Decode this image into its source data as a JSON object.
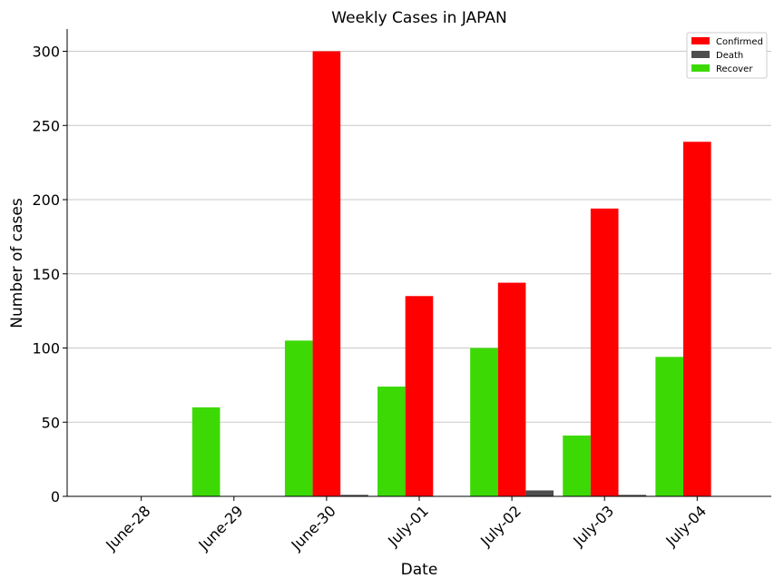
{
  "chart_data": {
    "type": "bar",
    "title": "Weekly Cases in JAPAN",
    "xlabel": "Date",
    "ylabel": "Number of cases",
    "categories": [
      "June-28",
      "June-29",
      "June-30",
      "July-01",
      "July-02",
      "July-03",
      "July-04"
    ],
    "series": [
      {
        "name": "Recover",
        "color": "#3dd904",
        "values": [
          0,
          60,
          105,
          74,
          100,
          41,
          94
        ]
      },
      {
        "name": "Confirmed",
        "color": "#ff0000",
        "values": [
          0,
          0,
          300,
          135,
          144,
          194,
          239
        ]
      },
      {
        "name": "Death",
        "color": "#4d4d4d",
        "values": [
          0,
          0,
          1,
          0,
          4,
          1,
          0
        ]
      }
    ],
    "legend_order": [
      "Confirmed",
      "Death",
      "Recover"
    ],
    "legend_position": "top-right",
    "ylim": [
      0,
      315
    ],
    "yticks": [
      0,
      50,
      100,
      150,
      200,
      250,
      300
    ],
    "grid": "horizontal"
  }
}
